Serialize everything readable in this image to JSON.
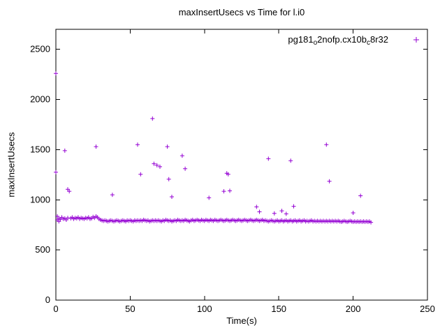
{
  "chart_data": {
    "type": "scatter",
    "title": "maxInsertUsecs vs Time for l.i0",
    "xlabel": "Time(s)",
    "ylabel": "maxInsertUsecs",
    "xlim": [
      0,
      250
    ],
    "ylim": [
      0,
      2700
    ],
    "xticks": [
      0,
      50,
      100,
      150,
      200,
      250
    ],
    "yticks": [
      0,
      500,
      1000,
      1500,
      2000,
      2500
    ],
    "grid": false,
    "legend_position": "top-right-inside",
    "marker": "plus",
    "marker_color": "#9400d3",
    "series": [
      {
        "name": "pg181_o2nofp.cx10b_c8r32",
        "name_segments": [
          {
            "t": "pg181"
          },
          {
            "t": "o",
            "sub": true
          },
          {
            "t": "2nofp.cx10b"
          },
          {
            "t": "c",
            "sub": true
          },
          {
            "t": "8r32"
          }
        ],
        "points": [
          [
            0,
            2260
          ],
          [
            0,
            1275
          ],
          [
            1,
            835
          ],
          [
            1,
            800
          ],
          [
            2,
            815
          ],
          [
            2,
            785
          ],
          [
            3,
            805
          ],
          [
            4,
            825
          ],
          [
            5,
            810
          ],
          [
            6,
            1490
          ],
          [
            6,
            815
          ],
          [
            7,
            800
          ],
          [
            8,
            1105
          ],
          [
            8,
            820
          ],
          [
            9,
            1085
          ],
          [
            10,
            815
          ],
          [
            11,
            825
          ],
          [
            12,
            810
          ],
          [
            13,
            820
          ],
          [
            14,
            815
          ],
          [
            15,
            825
          ],
          [
            16,
            810
          ],
          [
            17,
            820
          ],
          [
            18,
            815
          ],
          [
            19,
            810
          ],
          [
            20,
            820
          ],
          [
            21,
            815
          ],
          [
            22,
            825
          ],
          [
            23,
            810
          ],
          [
            24,
            815
          ],
          [
            25,
            830
          ],
          [
            26,
            820
          ],
          [
            27,
            1530
          ],
          [
            27,
            835
          ],
          [
            28,
            825
          ],
          [
            29,
            810
          ],
          [
            30,
            800
          ],
          [
            31,
            795
          ],
          [
            32,
            790
          ],
          [
            33,
            795
          ],
          [
            34,
            790
          ],
          [
            35,
            785
          ],
          [
            36,
            790
          ],
          [
            37,
            795
          ],
          [
            38,
            1050
          ],
          [
            38,
            790
          ],
          [
            39,
            785
          ],
          [
            40,
            790
          ],
          [
            41,
            795
          ],
          [
            42,
            790
          ],
          [
            43,
            785
          ],
          [
            44,
            790
          ],
          [
            45,
            795
          ],
          [
            46,
            790
          ],
          [
            47,
            785
          ],
          [
            48,
            795
          ],
          [
            49,
            790
          ],
          [
            50,
            795
          ],
          [
            51,
            790
          ],
          [
            52,
            785
          ],
          [
            53,
            795
          ],
          [
            54,
            790
          ],
          [
            55,
            1550
          ],
          [
            55,
            795
          ],
          [
            56,
            790
          ],
          [
            57,
            1255
          ],
          [
            57,
            795
          ],
          [
            58,
            790
          ],
          [
            59,
            800
          ],
          [
            60,
            795
          ],
          [
            61,
            790
          ],
          [
            62,
            795
          ],
          [
            63,
            785
          ],
          [
            64,
            790
          ],
          [
            65,
            1810
          ],
          [
            65,
            795
          ],
          [
            66,
            1360
          ],
          [
            66,
            790
          ],
          [
            67,
            795
          ],
          [
            68,
            1345
          ],
          [
            68,
            790
          ],
          [
            69,
            795
          ],
          [
            70,
            1330
          ],
          [
            70,
            790
          ],
          [
            71,
            785
          ],
          [
            72,
            795
          ],
          [
            73,
            790
          ],
          [
            74,
            800
          ],
          [
            75,
            1530
          ],
          [
            75,
            795
          ],
          [
            76,
            1205
          ],
          [
            76,
            790
          ],
          [
            77,
            795
          ],
          [
            78,
            1030
          ],
          [
            78,
            785
          ],
          [
            79,
            790
          ],
          [
            80,
            795
          ],
          [
            81,
            790
          ],
          [
            82,
            800
          ],
          [
            83,
            795
          ],
          [
            84,
            790
          ],
          [
            85,
            1440
          ],
          [
            85,
            795
          ],
          [
            86,
            790
          ],
          [
            87,
            1310
          ],
          [
            87,
            800
          ],
          [
            88,
            795
          ],
          [
            89,
            790
          ],
          [
            90,
            785
          ],
          [
            91,
            795
          ],
          [
            92,
            800
          ],
          [
            93,
            790
          ],
          [
            94,
            795
          ],
          [
            95,
            800
          ],
          [
            96,
            795
          ],
          [
            97,
            790
          ],
          [
            98,
            800
          ],
          [
            99,
            795
          ],
          [
            100,
            790
          ],
          [
            101,
            800
          ],
          [
            102,
            795
          ],
          [
            103,
            1020
          ],
          [
            103,
            790
          ],
          [
            104,
            800
          ],
          [
            105,
            795
          ],
          [
            106,
            790
          ],
          [
            107,
            800
          ],
          [
            108,
            795
          ],
          [
            109,
            790
          ],
          [
            110,
            795
          ],
          [
            111,
            800
          ],
          [
            112,
            795
          ],
          [
            113,
            1085
          ],
          [
            113,
            790
          ],
          [
            114,
            795
          ],
          [
            115,
            1265
          ],
          [
            115,
            800
          ],
          [
            116,
            1255
          ],
          [
            116,
            795
          ],
          [
            117,
            1090
          ],
          [
            117,
            790
          ],
          [
            118,
            795
          ],
          [
            119,
            800
          ],
          [
            120,
            795
          ],
          [
            121,
            790
          ],
          [
            122,
            795
          ],
          [
            123,
            800
          ],
          [
            124,
            795
          ],
          [
            125,
            790
          ],
          [
            126,
            795
          ],
          [
            127,
            800
          ],
          [
            128,
            795
          ],
          [
            129,
            790
          ],
          [
            130,
            795
          ],
          [
            131,
            800
          ],
          [
            132,
            795
          ],
          [
            133,
            790
          ],
          [
            134,
            795
          ],
          [
            135,
            930
          ],
          [
            135,
            800
          ],
          [
            136,
            795
          ],
          [
            137,
            880
          ],
          [
            137,
            790
          ],
          [
            138,
            795
          ],
          [
            139,
            800
          ],
          [
            140,
            790
          ],
          [
            141,
            795
          ],
          [
            142,
            790
          ],
          [
            143,
            1410
          ],
          [
            143,
            785
          ],
          [
            144,
            790
          ],
          [
            145,
            795
          ],
          [
            146,
            790
          ],
          [
            147,
            865
          ],
          [
            147,
            785
          ],
          [
            148,
            790
          ],
          [
            149,
            795
          ],
          [
            150,
            785
          ],
          [
            151,
            790
          ],
          [
            152,
            890
          ],
          [
            152,
            795
          ],
          [
            153,
            785
          ],
          [
            154,
            790
          ],
          [
            155,
            860
          ],
          [
            155,
            795
          ],
          [
            156,
            785
          ],
          [
            157,
            790
          ],
          [
            158,
            1390
          ],
          [
            158,
            795
          ],
          [
            159,
            785
          ],
          [
            160,
            935
          ],
          [
            160,
            790
          ],
          [
            161,
            795
          ],
          [
            162,
            785
          ],
          [
            163,
            790
          ],
          [
            164,
            795
          ],
          [
            165,
            785
          ],
          [
            166,
            790
          ],
          [
            167,
            795
          ],
          [
            168,
            785
          ],
          [
            169,
            790
          ],
          [
            170,
            785
          ],
          [
            171,
            790
          ],
          [
            172,
            795
          ],
          [
            173,
            785
          ],
          [
            174,
            790
          ],
          [
            175,
            785
          ],
          [
            176,
            790
          ],
          [
            177,
            785
          ],
          [
            178,
            790
          ],
          [
            179,
            785
          ],
          [
            180,
            790
          ],
          [
            181,
            785
          ],
          [
            182,
            1550
          ],
          [
            182,
            790
          ],
          [
            183,
            785
          ],
          [
            184,
            1185
          ],
          [
            184,
            790
          ],
          [
            185,
            785
          ],
          [
            186,
            790
          ],
          [
            187,
            785
          ],
          [
            188,
            790
          ],
          [
            189,
            785
          ],
          [
            190,
            790
          ],
          [
            191,
            785
          ],
          [
            192,
            780
          ],
          [
            193,
            785
          ],
          [
            194,
            790
          ],
          [
            195,
            785
          ],
          [
            196,
            780
          ],
          [
            197,
            785
          ],
          [
            198,
            790
          ],
          [
            199,
            785
          ],
          [
            200,
            870
          ],
          [
            200,
            780
          ],
          [
            201,
            785
          ],
          [
            202,
            780
          ],
          [
            203,
            785
          ],
          [
            204,
            780
          ],
          [
            205,
            1040
          ],
          [
            205,
            785
          ],
          [
            206,
            780
          ],
          [
            207,
            785
          ],
          [
            208,
            780
          ],
          [
            209,
            785
          ],
          [
            210,
            780
          ],
          [
            211,
            785
          ],
          [
            212,
            775
          ]
        ]
      }
    ]
  }
}
